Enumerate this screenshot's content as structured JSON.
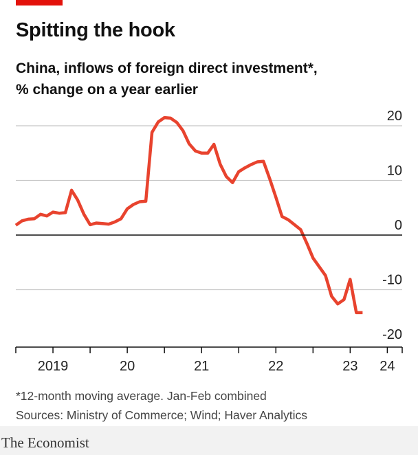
{
  "header": {
    "title": "Spitting the hook",
    "subtitle_line1": "China, inflows of foreign direct investment*,",
    "subtitle_line2": "% change on a year earlier"
  },
  "footer": {
    "note": "*12-month moving average. Jan-Feb combined",
    "sources": "Sources: Ministry of Commerce; Wind; Haver Analytics",
    "brand": "The Economist"
  },
  "colors": {
    "accent": "#e3120b",
    "line": "#e8432e",
    "grid": "#c8c8c8",
    "zero_line": "#111111"
  },
  "chart_data": {
    "type": "line",
    "title": "Spitting the hook",
    "subtitle": "China, inflows of foreign direct investment*, % change on a year earlier",
    "ylim": [
      -20,
      22
    ],
    "yticks": [
      20,
      10,
      0,
      -10,
      -20
    ],
    "ytick_labels": [
      "20",
      "10",
      "0",
      "-10",
      "-20"
    ],
    "y_axis_position": "right",
    "grid": true,
    "xlim": [
      2019.0,
      2024.2
    ],
    "xticks": [
      2019,
      2019.5,
      2020,
      2020.5,
      2021,
      2021.5,
      2022,
      2022.5,
      2023,
      2023.5,
      2024,
      2024.2
    ],
    "xtick_labels": [
      {
        "label": "2019",
        "x": 2019.5
      },
      {
        "label": "20",
        "x": 2020.5
      },
      {
        "label": "21",
        "x": 2021.5
      },
      {
        "label": "22",
        "x": 2022.5
      },
      {
        "label": "23",
        "x": 2023.5
      },
      {
        "label": "24",
        "x": 2024.0
      }
    ],
    "series": [
      {
        "x": [
          2019.0,
          2019.083,
          2019.167,
          2019.25,
          2019.333,
          2019.417,
          2019.5,
          2019.583,
          2019.667,
          2019.75,
          2019.833,
          2019.917,
          2020.0,
          2020.083,
          2020.167,
          2020.25,
          2020.333,
          2020.417,
          2020.5,
          2020.583,
          2020.667,
          2020.75,
          2020.833,
          2020.917,
          2021.0,
          2021.083,
          2021.167,
          2021.25,
          2021.333,
          2021.417,
          2021.5,
          2021.583,
          2021.667,
          2021.75,
          2021.833,
          2021.917,
          2022.0,
          2022.083,
          2022.167,
          2022.25,
          2022.333,
          2022.417,
          2022.5,
          2022.583,
          2022.667,
          2022.75,
          2022.833,
          2022.917,
          2023.0,
          2023.083,
          2023.167,
          2023.25,
          2023.333,
          2023.417,
          2023.5,
          2023.583,
          2023.667,
          2023.75,
          2023.833,
          2023.917,
          2024.0,
          2024.083
        ],
        "values": [
          1.8,
          2.6,
          2.9,
          3.0,
          3.8,
          3.5,
          4.2,
          4.0,
          4.1,
          8.2,
          6.4,
          3.8,
          1.9,
          2.2,
          2.1,
          2.0,
          2.4,
          3.0,
          4.8,
          5.6,
          6.1,
          6.2,
          18.8,
          20.7,
          21.5,
          21.4,
          20.6,
          19.1,
          16.7,
          15.4,
          15.0,
          15.0,
          16.6,
          13.0,
          10.7,
          9.6,
          11.6,
          12.3,
          12.9,
          13.4,
          13.5,
          10.3,
          6.9,
          3.4,
          2.8,
          1.9,
          1.0,
          -1.5,
          -4.2,
          -5.8,
          -7.4,
          -11.2,
          -12.6,
          -11.8,
          -8.1,
          -14.2,
          -14.2,
          -14.2,
          -14.2,
          -14.2,
          -14.2,
          -14.2
        ]
      }
    ]
  }
}
